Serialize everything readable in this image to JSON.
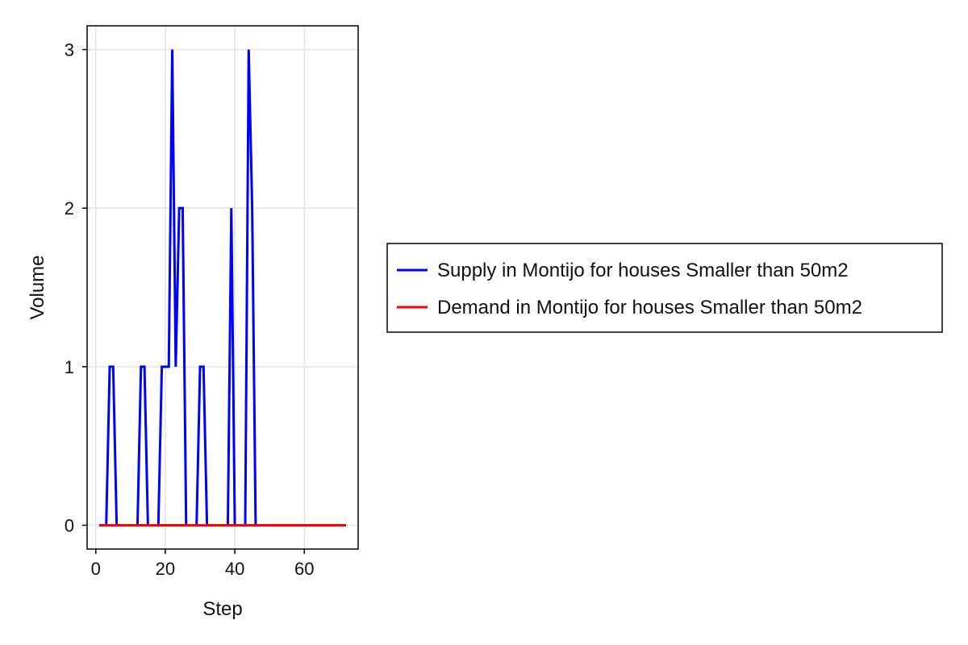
{
  "chart_data": {
    "type": "line",
    "xlabel": "Step",
    "ylabel": "Volume",
    "xlim": [
      -2.5,
      75.5
    ],
    "ylim": [
      -0.15,
      3.15
    ],
    "xticks": [
      0,
      20,
      40,
      60
    ],
    "yticks": [
      0,
      1,
      2,
      3
    ],
    "grid": true,
    "legend_position": "right",
    "series": [
      {
        "name": "Supply in Montijo for houses Smaller than 50m2",
        "color": "#0000ff",
        "x": [
          1,
          2,
          3,
          4,
          5,
          6,
          7,
          8,
          9,
          10,
          11,
          12,
          13,
          14,
          15,
          16,
          17,
          18,
          19,
          20,
          21,
          22,
          23,
          24,
          25,
          26,
          27,
          28,
          29,
          30,
          31,
          32,
          33,
          34,
          35,
          36,
          37,
          38,
          39,
          40,
          41,
          42,
          43,
          44,
          45,
          46,
          47,
          48,
          49,
          50,
          51,
          52,
          53,
          54,
          55,
          56,
          57,
          58,
          59,
          60,
          61,
          62,
          63,
          64,
          65,
          66,
          67,
          68,
          69,
          70,
          71,
          72
        ],
        "y": [
          0,
          0,
          0,
          1,
          1,
          0,
          0,
          0,
          0,
          0,
          0,
          0,
          1,
          1,
          0,
          0,
          0,
          0,
          1,
          1,
          1,
          3,
          1,
          2,
          2,
          0,
          0,
          0,
          0,
          1,
          1,
          0,
          0,
          0,
          0,
          0,
          0,
          0,
          2,
          0,
          0,
          0,
          0,
          3,
          2,
          0,
          0,
          0,
          0,
          0,
          0,
          0,
          0,
          0,
          0,
          0,
          0,
          0,
          0,
          0,
          0,
          0,
          0,
          0,
          0,
          0,
          0,
          0,
          0,
          0,
          0,
          0
        ]
      },
      {
        "name": "Demand in Montijo for houses Smaller than 50m2",
        "color": "#ff0000",
        "x": [
          1,
          72
        ],
        "y": [
          0,
          0
        ]
      }
    ]
  }
}
